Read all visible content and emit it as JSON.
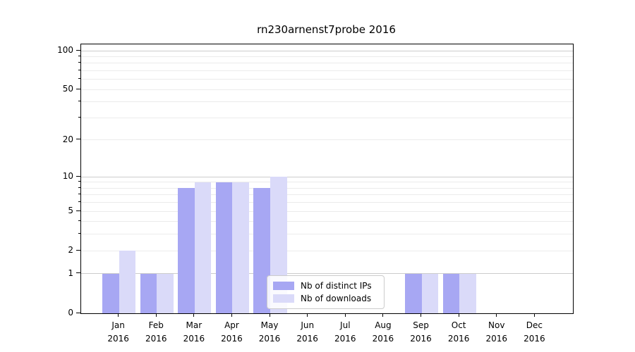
{
  "chart_data": {
    "type": "bar",
    "title": "rn230arnenst7probe 2016",
    "categories": [
      "Jan",
      "Feb",
      "Mar",
      "Apr",
      "May",
      "Jun",
      "Jul",
      "Aug",
      "Sep",
      "Oct",
      "Nov",
      "Dec"
    ],
    "category_year": "2016",
    "series": [
      {
        "name": "Nb of distinct IPs",
        "color": "#a7a7f3",
        "values": [
          1,
          1,
          8,
          9,
          8,
          0,
          0,
          0,
          1,
          1,
          0,
          0
        ]
      },
      {
        "name": "Nb of downloads",
        "color": "#dadaf9",
        "values": [
          2,
          1,
          9,
          9,
          10,
          0,
          0,
          0,
          1,
          1,
          0,
          0
        ]
      }
    ],
    "yscale": "log1p",
    "ylim": [
      0,
      112
    ],
    "yticks": [
      0,
      1,
      2,
      5,
      10,
      20,
      50,
      100
    ],
    "ytick_labels": [
      "0",
      "1",
      "2",
      "5",
      "10",
      "20",
      "50",
      "100"
    ],
    "major_gridline_values": [
      1,
      10,
      100
    ],
    "minor_gridline_values": [
      2,
      3,
      4,
      5,
      6,
      7,
      8,
      9,
      20,
      30,
      40,
      50,
      60,
      70,
      80,
      90
    ],
    "grid": "horizontal",
    "legend_position": "lower center"
  },
  "colors": {
    "background": "#ffffff",
    "axis": "#000000",
    "major_grid": "#cccccc",
    "minor_grid": "#ebebeb"
  }
}
